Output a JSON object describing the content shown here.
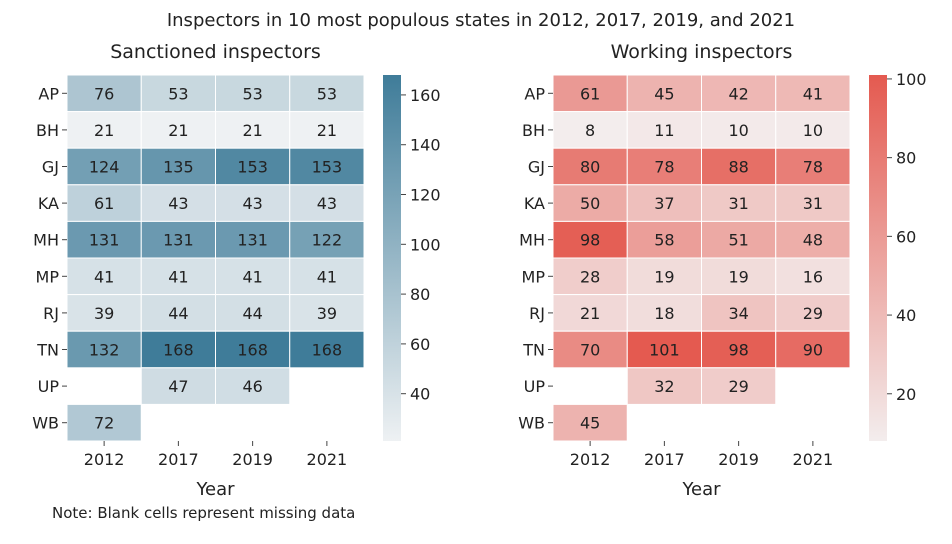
{
  "suptitle": "Inspectors in 10 most populous states in 2012, 2017, 2019, and 2021",
  "note": "Note: Blank cells represent missing data",
  "chart_data": [
    {
      "type": "heatmap",
      "title": "Sanctioned inspectors",
      "xlabel": "Year",
      "ylabel": "",
      "columns": [
        "2012",
        "2017",
        "2019",
        "2021"
      ],
      "rows": [
        "AP",
        "BH",
        "GJ",
        "KA",
        "MH",
        "MP",
        "RJ",
        "TN",
        "UP",
        "WB"
      ],
      "values": [
        [
          76,
          53,
          53,
          53
        ],
        [
          21,
          21,
          21,
          21
        ],
        [
          124,
          135,
          153,
          153
        ],
        [
          61,
          43,
          43,
          43
        ],
        [
          131,
          131,
          131,
          122
        ],
        [
          41,
          41,
          41,
          41
        ],
        [
          39,
          44,
          44,
          39
        ],
        [
          132,
          168,
          168,
          168
        ],
        [
          null,
          47,
          46,
          null
        ],
        [
          72,
          null,
          null,
          null
        ]
      ],
      "color_range": [
        21,
        168
      ],
      "colormap": {
        "low": "#eef1f3",
        "high": "#3f7c99"
      },
      "colorbar_ticks": [
        40,
        60,
        80,
        100,
        120,
        140,
        160
      ]
    },
    {
      "type": "heatmap",
      "title": "Working inspectors",
      "xlabel": "Year",
      "ylabel": "",
      "columns": [
        "2012",
        "2017",
        "2019",
        "2021"
      ],
      "rows": [
        "AP",
        "BH",
        "GJ",
        "KA",
        "MH",
        "MP",
        "RJ",
        "TN",
        "UP",
        "WB"
      ],
      "values": [
        [
          61,
          45,
          42,
          41
        ],
        [
          8,
          11,
          10,
          10
        ],
        [
          80,
          78,
          88,
          78
        ],
        [
          50,
          37,
          31,
          31
        ],
        [
          98,
          58,
          51,
          48
        ],
        [
          28,
          19,
          19,
          16
        ],
        [
          21,
          18,
          34,
          29
        ],
        [
          70,
          101,
          98,
          90
        ],
        [
          null,
          32,
          29,
          null
        ],
        [
          45,
          null,
          null,
          null
        ]
      ],
      "color_range": [
        8,
        101
      ],
      "colormap": {
        "low": "#f3eded",
        "high": "#e45a50"
      },
      "colorbar_ticks": [
        20,
        40,
        60,
        80,
        100
      ]
    }
  ]
}
